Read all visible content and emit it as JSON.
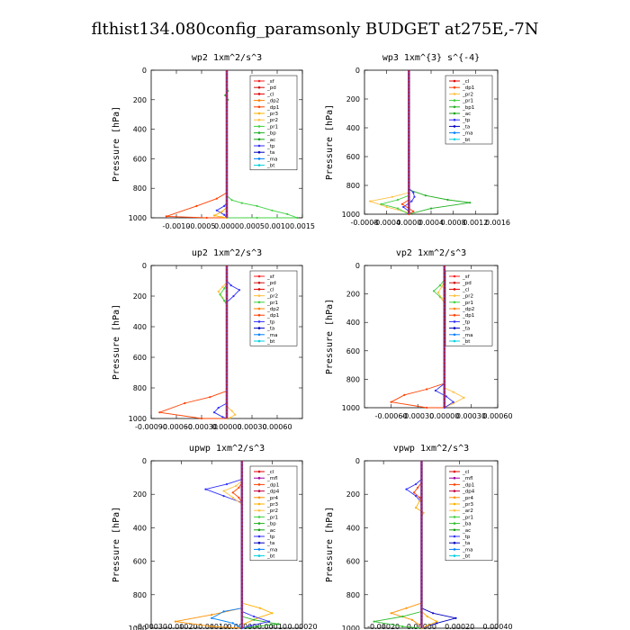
{
  "page": {
    "title": "flthist134.080config_paramsonly  BUDGET at275E,-7N"
  },
  "colors": {
    "sf": "#ff2020",
    "pd": "#d01010",
    "cl": "#e00000",
    "dp2": "#ff8000",
    "dp1": "#ff4000",
    "pr3": "#ffb000",
    "pr2": "#ffc040",
    "pr1": "#40d040",
    "bp": "#20b020",
    "bp1": "#20b020",
    "ac": "#10a010",
    "tp": "#3030ff",
    "ta": "#0000c0",
    "ma": "#0080ff",
    "bt": "#00d0e0",
    "mfl": "#a000a0",
    "dp4": "#c00040",
    "pr4": "#ff9000",
    "pr5": "#ffa000",
    "ba": "#30c030",
    "center": "#8b3a8b",
    "center_red": "#cc0000"
  },
  "chart_data": [
    {
      "id": "wp2",
      "type": "line",
      "title": "wp2   1xm^2/s^3",
      "ylabel": "Pressure  [hPa]",
      "xlim": [
        -0.0015,
        0.0015
      ],
      "ylim": [
        1000,
        0
      ],
      "xticks": [
        "-0.0010",
        "-0.0005",
        "0.0000",
        "0.0005",
        "0.0010",
        "0.0015"
      ],
      "xtick_values": [
        -0.001,
        -0.0005,
        0,
        0.0005,
        0.001,
        0.0015
      ],
      "yticks": [
        "0",
        "200",
        "400",
        "600",
        "800",
        "1000"
      ],
      "legend": [
        "_sf",
        "_pd",
        "_cl",
        "_dp2",
        "_dp1",
        "_pr3",
        "_pr2",
        "_pr1",
        "_bp",
        "_ac",
        "_tp",
        "_ta",
        "_ma",
        "_bt"
      ],
      "legend_keys": [
        "sf",
        "pd",
        "cl",
        "dp2",
        "dp1",
        "pr3",
        "pr2",
        "pr1",
        "bp",
        "ac",
        "tp",
        "ta",
        "ma",
        "bt"
      ],
      "series": [
        {
          "name": "_pr1",
          "key": "pr1",
          "x": [
            0,
            0.0001,
            0.0003,
            0.0006,
            0.0009,
            0.0012,
            0.0014,
            0.0006,
            0
          ],
          "y": [
            850,
            880,
            900,
            920,
            950,
            975,
            1000,
            1000,
            1000
          ]
        },
        {
          "name": "_dp1",
          "key": "dp1",
          "x": [
            0,
            -0.0002,
            -0.0006,
            -0.0012,
            -0.0004,
            0
          ],
          "y": [
            830,
            870,
            920,
            990,
            1000,
            1000
          ]
        },
        {
          "name": "_bp",
          "key": "bp",
          "x": [
            0,
            2e-05,
            -3e-05,
            2e-05,
            0
          ],
          "y": [
            100,
            140,
            170,
            200,
            230
          ]
        },
        {
          "name": "_tp",
          "key": "tp",
          "x": [
            0,
            -5e-05,
            -0.0002,
            -5e-05,
            0
          ],
          "y": [
            900,
            920,
            950,
            980,
            1000
          ]
        },
        {
          "name": "_pr3",
          "key": "pr3",
          "x": [
            0,
            -0.0001,
            -0.00025,
            -0.0001,
            0
          ],
          "y": [
            930,
            960,
            985,
            995,
            1000
          ]
        }
      ]
    },
    {
      "id": "wp3",
      "type": "line",
      "title": "wp3   1xm^{3} s^{-4}",
      "ylabel": "Pressure  [hPa]",
      "xlim": [
        -0.0008,
        0.0016
      ],
      "ylim": [
        1000,
        0
      ],
      "xticks": [
        "-0.0008",
        "-0.0004",
        "0.0000",
        "0.0004",
        "0.0008",
        "0.0012",
        "0.0016"
      ],
      "xtick_values": [
        -0.0008,
        -0.0004,
        0,
        0.0004,
        0.0008,
        0.0012,
        0.0016
      ],
      "yticks": [
        "0",
        "200",
        "400",
        "600",
        "800",
        "1000"
      ],
      "legend": [
        "_cl",
        "_dp1",
        "_pr2",
        "_pr1",
        "_bp1",
        "_ac",
        "_tp",
        "_ta",
        "_ma",
        "_bt"
      ],
      "legend_keys": [
        "cl",
        "dp1",
        "pr2",
        "pr1",
        "bp1",
        "ac",
        "tp",
        "ta",
        "ma",
        "bt"
      ],
      "series": [
        {
          "name": "_bp1",
          "key": "bp1",
          "x": [
            0,
            0.0003,
            0.0007,
            0.0011,
            0.0004,
            0
          ],
          "y": [
            830,
            870,
            900,
            920,
            960,
            1000
          ]
        },
        {
          "name": "_pr2",
          "key": "pr2",
          "x": [
            0,
            -0.0003,
            -0.0007,
            -0.0004,
            0
          ],
          "y": [
            850,
            880,
            910,
            950,
            990
          ]
        },
        {
          "name": "_pr1",
          "key": "pr1",
          "x": [
            0,
            -0.0002,
            -0.0005,
            -0.0002,
            0
          ],
          "y": [
            870,
            900,
            930,
            960,
            1000
          ]
        },
        {
          "name": "_tp",
          "key": "tp",
          "x": [
            0,
            8e-05,
            0.0001,
            5e-05,
            -0.0001,
            0
          ],
          "y": [
            820,
            850,
            880,
            910,
            950,
            980
          ]
        },
        {
          "name": "_dp1",
          "key": "dp1",
          "x": [
            0,
            -0.00012,
            0,
            8e-05,
            0
          ],
          "y": [
            900,
            930,
            960,
            980,
            1000
          ]
        }
      ]
    },
    {
      "id": "up2",
      "type": "line",
      "title": "up2   1xm^2/s^3",
      "ylabel": "Pressure  [hPa]",
      "xlim": [
        -0.0009,
        0.0009
      ],
      "ylim": [
        1000,
        0
      ],
      "xticks": [
        "-0.00090",
        "-0.00060",
        "-0.00030",
        "0.00000",
        "0.00030",
        "0.00060"
      ],
      "xtick_values": [
        -0.0009,
        -0.0006,
        -0.0003,
        0,
        0.0003,
        0.0006
      ],
      "yticks": [
        "0",
        "200",
        "400",
        "600",
        "800",
        "1000"
      ],
      "legend": [
        "_sf",
        "_pd",
        "_cl",
        "_pr2",
        "_pr1",
        "_dp2",
        "_dp1",
        "_tp",
        "_ta",
        "_ma",
        "_bt"
      ],
      "legend_keys": [
        "sf",
        "pd",
        "cl",
        "pr2",
        "pr1",
        "dp2",
        "dp1",
        "tp",
        "ta",
        "ma",
        "bt"
      ],
      "series": [
        {
          "name": "_tp",
          "key": "tp",
          "x": [
            0,
            5e-05,
            0.00015,
            8e-05,
            0
          ],
          "y": [
            100,
            130,
            160,
            200,
            240
          ]
        },
        {
          "name": "_pr2",
          "key": "pr2",
          "x": [
            0,
            -5e-05,
            -0.0001,
            -5e-05,
            0
          ],
          "y": [
            110,
            140,
            170,
            210,
            250
          ]
        },
        {
          "name": "_pr1",
          "key": "pr1",
          "x": [
            0,
            -3e-05,
            -8e-05,
            -3e-05,
            0
          ],
          "y": [
            120,
            150,
            190,
            230,
            260
          ]
        },
        {
          "name": "_dp1",
          "key": "dp1",
          "x": [
            0,
            -0.0002,
            -0.0005,
            -0.0008,
            -0.0003,
            0
          ],
          "y": [
            820,
            860,
            900,
            960,
            1000,
            1000
          ]
        },
        {
          "name": "_tp2",
          "key": "tp",
          "x": [
            0,
            -0.0001,
            -0.00015,
            -5e-05,
            0
          ],
          "y": [
            900,
            930,
            960,
            990,
            1000
          ]
        },
        {
          "name": "_pr2b",
          "key": "pr2",
          "x": [
            0,
            6e-05,
            0.0001,
            4e-05,
            0
          ],
          "y": [
            920,
            950,
            975,
            995,
            1000
          ]
        }
      ]
    },
    {
      "id": "vp2",
      "type": "line",
      "title": "vp2   1xm^2/s^3",
      "ylabel": "Pressure  [hPa]",
      "xlim": [
        -0.0009,
        0.0006
      ],
      "ylim": [
        1000,
        0
      ],
      "xticks": [
        "-0.00060",
        "-0.00030",
        "0.00000",
        "0.00030",
        "0.00060"
      ],
      "xtick_values": [
        -0.0006,
        -0.0003,
        0,
        0.0003,
        0.0006
      ],
      "yticks": [
        "0",
        "200",
        "400",
        "600",
        "800",
        "1000"
      ],
      "legend": [
        "_sf",
        "_pd",
        "_cl",
        "_pr2",
        "_pr1",
        "_dp2",
        "_dp1",
        "_tp",
        "_ta",
        "_ma",
        "_bt"
      ],
      "legend_keys": [
        "sf",
        "pd",
        "cl",
        "pr2",
        "pr1",
        "dp2",
        "dp1",
        "tp",
        "ta",
        "ma",
        "bt"
      ],
      "series": [
        {
          "name": "_pr1",
          "key": "pr1",
          "x": [
            0,
            -5e-05,
            -0.00012,
            -5e-05,
            0
          ],
          "y": [
            100,
            140,
            180,
            220,
            260
          ]
        },
        {
          "name": "_pr2",
          "key": "pr2",
          "x": [
            0,
            -3e-05,
            -7e-05,
            -3e-05,
            0
          ],
          "y": [
            110,
            150,
            190,
            230,
            270
          ]
        },
        {
          "name": "_tp",
          "key": "tp",
          "x": [
            0,
            3e-05,
            6e-05,
            2e-05,
            0
          ],
          "y": [
            120,
            150,
            180,
            210,
            240
          ]
        },
        {
          "name": "_dp1",
          "key": "dp1",
          "x": [
            0,
            -0.0002,
            -0.00045,
            -0.0006,
            -0.0002,
            0
          ],
          "y": [
            830,
            870,
            910,
            960,
            1000,
            1000
          ]
        },
        {
          "name": "_pr2b",
          "key": "pr2",
          "x": [
            0,
            0.0001,
            0.00022,
            0.0001,
            0
          ],
          "y": [
            860,
            890,
            930,
            970,
            1000
          ]
        },
        {
          "name": "_tp2",
          "key": "tp",
          "x": [
            0,
            -0.0001,
            2e-05,
            0.0001,
            0
          ],
          "y": [
            830,
            880,
            920,
            960,
            1000
          ]
        }
      ]
    },
    {
      "id": "upwp",
      "type": "line",
      "title": "upwp   1xm^2/s^3",
      "ylabel": "Pressure  [hPa]",
      "xlim": [
        -0.0003,
        0.0002
      ],
      "ylim": [
        1000,
        0
      ],
      "xticks": [
        "-0.00030",
        "-0.00020",
        "-0.00010",
        "0.00000",
        "0.00010",
        "0.00020"
      ],
      "xtick_values": [
        -0.0003,
        -0.0002,
        -0.0001,
        0,
        0.0001,
        0.0002
      ],
      "yticks": [
        "0",
        "200",
        "400",
        "600",
        "800",
        "1000"
      ],
      "legend": [
        "_cl",
        "_mfl",
        "_dp1",
        "_dp4",
        "_pr4",
        "_pr3",
        "_pr2",
        "_pr1",
        "_bp",
        "_ac",
        "_tp",
        "_ta",
        "_ma",
        "_bt"
      ],
      "legend_keys": [
        "cl",
        "mfl",
        "dp1",
        "dp4",
        "pr4",
        "pr3",
        "pr2",
        "pr1",
        "bp",
        "ac",
        "tp",
        "ta",
        "ma",
        "bt"
      ],
      "series": [
        {
          "name": "_tp",
          "key": "tp",
          "x": [
            0,
            -5e-05,
            -0.00012,
            -6e-05,
            0
          ],
          "y": [
            110,
            140,
            170,
            210,
            250
          ]
        },
        {
          "name": "_pr2",
          "key": "pr2",
          "x": [
            0,
            -2e-05,
            -6e-05,
            -3e-05,
            0
          ],
          "y": [
            120,
            150,
            180,
            220,
            260
          ]
        },
        {
          "name": "_dp1",
          "key": "dp1",
          "x": [
            0,
            -1e-05,
            -3e-05,
            -1e-05,
            0
          ],
          "y": [
            130,
            160,
            190,
            220,
            250
          ]
        },
        {
          "name": "_pr4",
          "key": "pr4",
          "x": [
            0,
            -0.0001,
            -0.00022,
            -0.0001,
            0
          ],
          "y": [
            880,
            920,
            960,
            990,
            1000
          ]
        },
        {
          "name": "_pr3",
          "key": "pr3",
          "x": [
            0,
            6e-05,
            0.0001,
            5e-05,
            0
          ],
          "y": [
            850,
            880,
            910,
            940,
            980
          ]
        },
        {
          "name": "_bp",
          "key": "bp",
          "x": [
            0,
            4e-05,
            0.00012,
            5e-05,
            0
          ],
          "y": [
            930,
            950,
            975,
            990,
            1000
          ]
        },
        {
          "name": "_ma",
          "key": "ma",
          "x": [
            0,
            -6e-05,
            -0.0001,
            -3e-05,
            0
          ],
          "y": [
            880,
            900,
            940,
            970,
            1000
          ]
        },
        {
          "name": "_tp2",
          "key": "tp",
          "x": [
            0,
            4e-05,
            9e-05,
            3e-05,
            0
          ],
          "y": [
            900,
            930,
            960,
            985,
            1000
          ]
        }
      ]
    },
    {
      "id": "vpwp",
      "type": "line",
      "title": "vpwp   1xm^2/s^3",
      "ylabel": "Pressure  [hPa]",
      "xlim": [
        -0.0003,
        0.0004
      ],
      "ylim": [
        1000,
        0
      ],
      "xticks": [
        "-0.00020",
        "0.00000",
        "0.00020",
        "0.00040"
      ],
      "xtick_values": [
        -0.0002,
        0,
        0.0002,
        0.0004
      ],
      "yticks": [
        "0",
        "200",
        "400",
        "600",
        "800",
        "1000"
      ],
      "legend": [
        "_cl",
        "_mfl",
        "_dp1",
        "_dp4",
        "_pr4",
        "_pr3",
        "_ar2",
        "_pr1",
        "_ba",
        "_ac",
        "_tp",
        "_ta",
        "_ma",
        "_bt"
      ],
      "legend_keys": [
        "cl",
        "mfl",
        "dp1",
        "dp4",
        "pr4",
        "pr3",
        "pr2",
        "pr1",
        "ba",
        "ac",
        "tp",
        "ta",
        "ma",
        "bt"
      ],
      "series": [
        {
          "name": "_tp",
          "key": "tp",
          "x": [
            0,
            -3e-05,
            -8e-05,
            -3e-05,
            0
          ],
          "y": [
            110,
            140,
            170,
            210,
            250
          ]
        },
        {
          "name": "_pr3",
          "key": "pr3",
          "x": [
            0,
            -1e-05,
            -3e-05,
            1e-05,
            0
          ],
          "y": [
            200,
            240,
            280,
            310,
            340
          ]
        },
        {
          "name": "_dp1",
          "key": "dp1",
          "x": [
            0,
            -2e-05,
            -4e-05,
            -1e-05,
            0
          ],
          "y": [
            130,
            160,
            190,
            220,
            250
          ]
        },
        {
          "name": "_pr4",
          "key": "pr4",
          "x": [
            0,
            -8e-05,
            -0.00016,
            -5e-05,
            0
          ],
          "y": [
            850,
            880,
            910,
            950,
            990
          ]
        },
        {
          "name": "_ba",
          "key": "ba",
          "x": [
            0,
            -0.0001,
            -0.00025,
            -0.0001,
            0
          ],
          "y": [
            900,
            930,
            960,
            990,
            1000
          ]
        },
        {
          "name": "_ta",
          "key": "ta",
          "x": [
            0,
            6e-05,
            0.00018,
            8e-05,
            0
          ],
          "y": [
            880,
            910,
            940,
            970,
            1000
          ]
        },
        {
          "name": "_pr3b",
          "key": "pr3",
          "x": [
            0,
            3e-05,
            8e-05,
            3e-05,
            0
          ],
          "y": [
            900,
            930,
            960,
            985,
            1000
          ]
        }
      ]
    }
  ]
}
